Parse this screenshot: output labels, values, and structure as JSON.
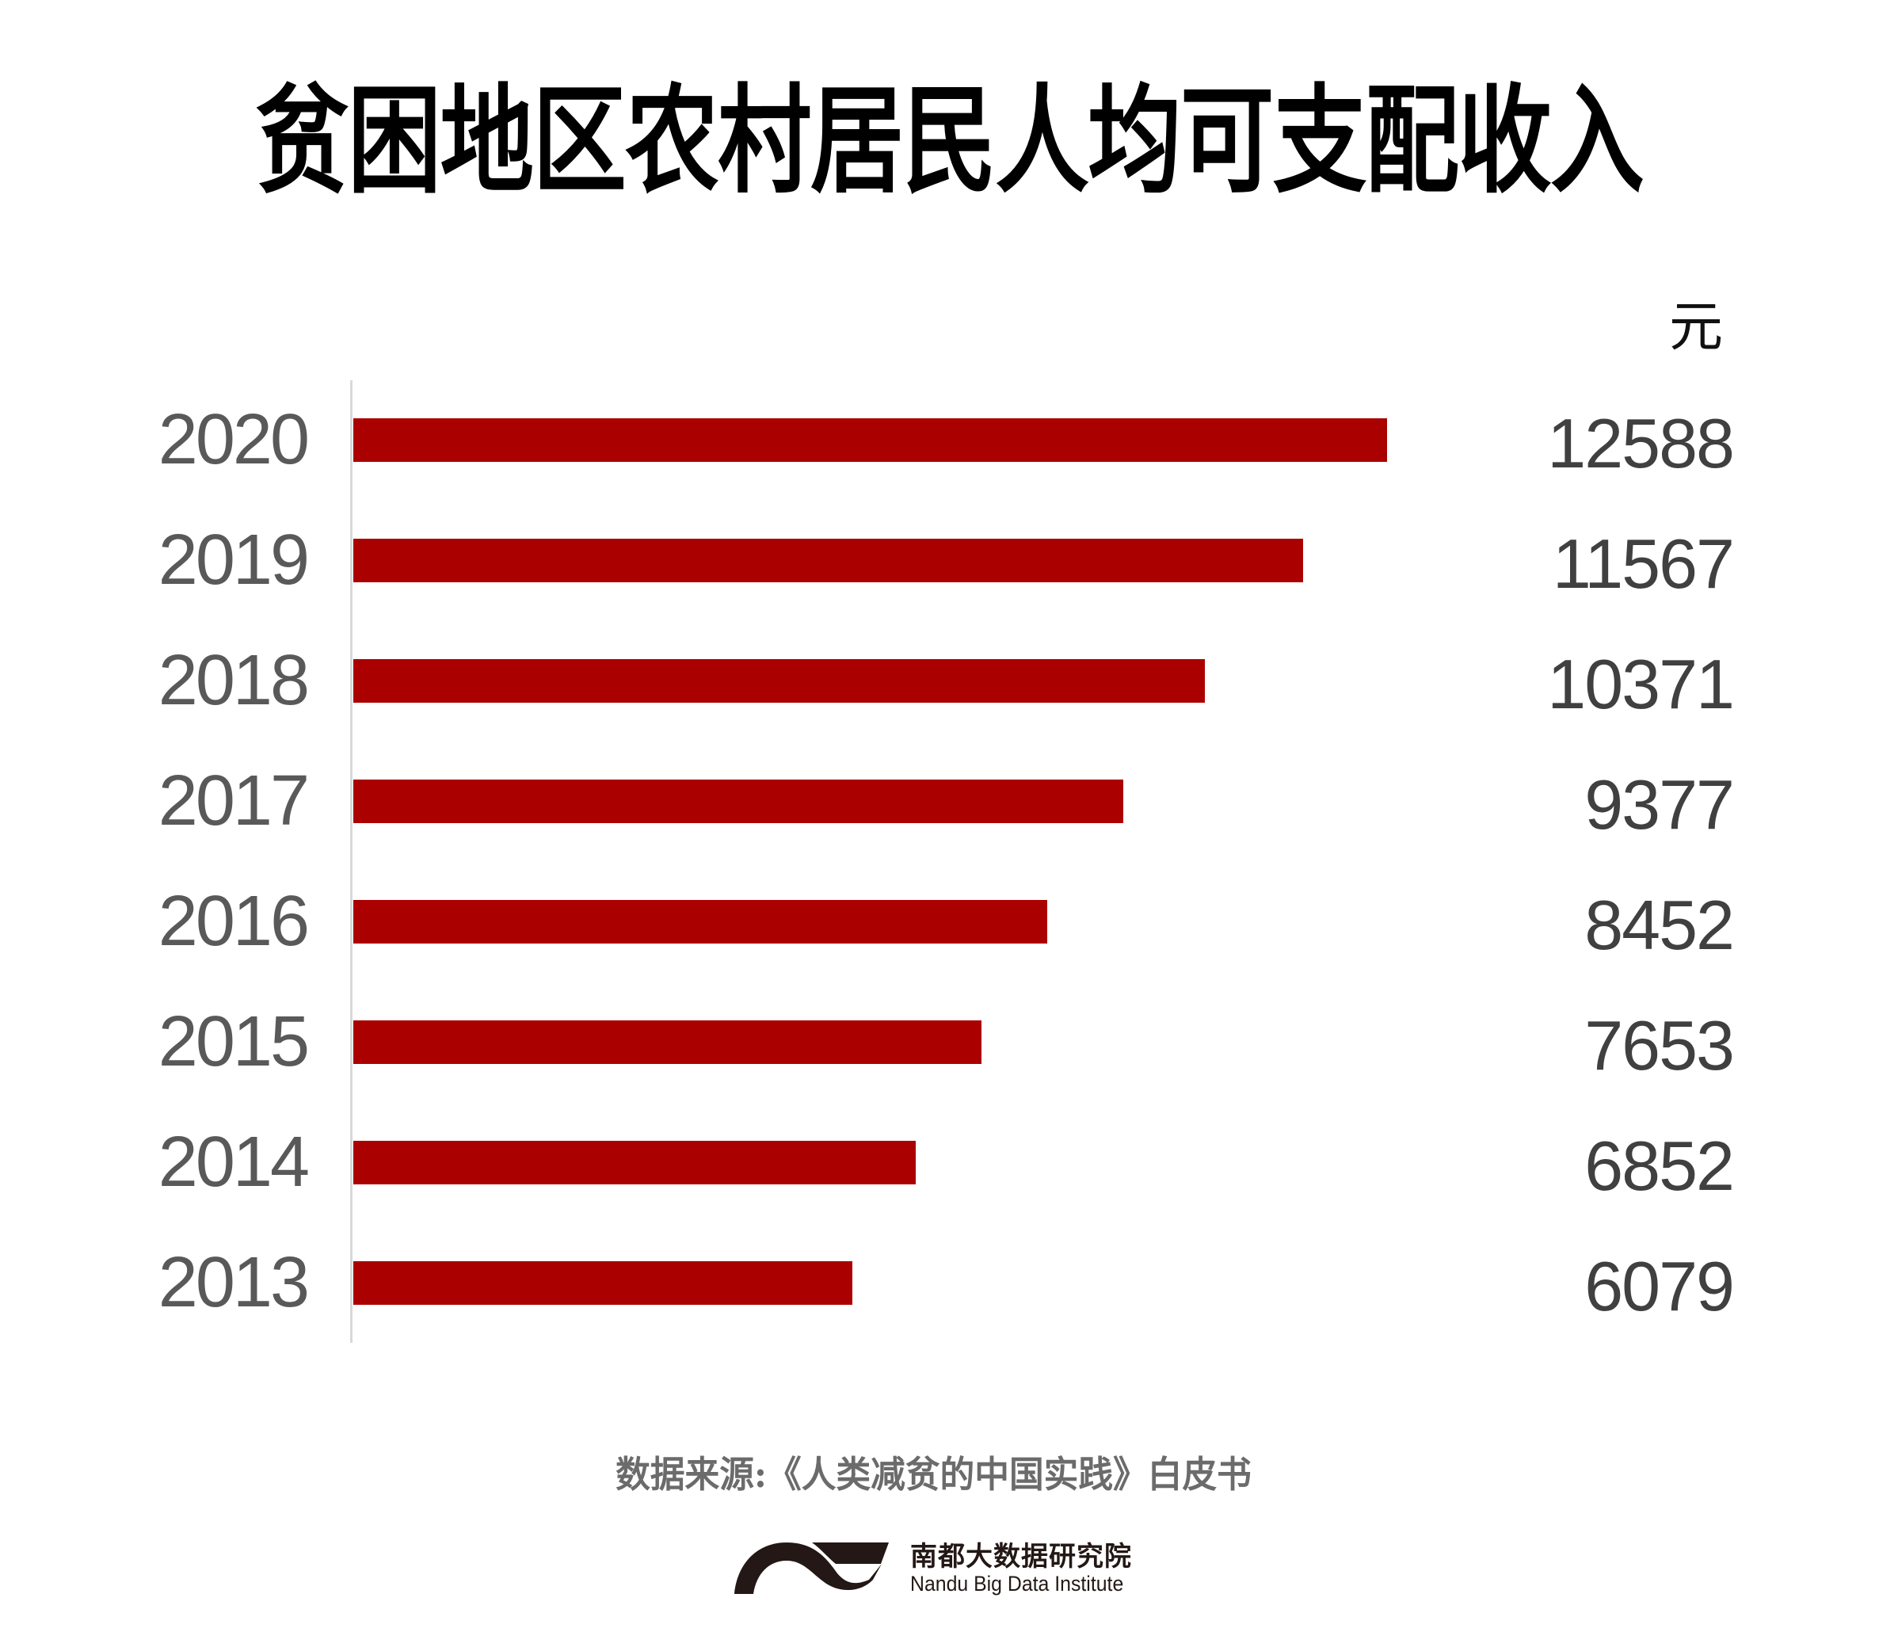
{
  "title": "贫困地区农村居民人均可支配收入",
  "unit": "元",
  "colors": {
    "bar": "#ab0000",
    "axis": "#d9d9d9",
    "year_label": "#595959",
    "value_label": "#404040",
    "source": "#6b6b6b",
    "logo": "#231815"
  },
  "source": "数据来源:《人类减贫的中国实践》白皮书",
  "logo": {
    "name_cn": "南都大数据研究院",
    "name_en": "Nandu Big Data Institute",
    "icon": "nandu-wave-logo-icon"
  },
  "chart_data": {
    "type": "bar",
    "orientation": "horizontal",
    "title": "贫困地区农村居民人均可支配收入",
    "xlabel": "",
    "ylabel": "",
    "unit": "元",
    "categories": [
      "2020",
      "2019",
      "2018",
      "2017",
      "2016",
      "2015",
      "2014",
      "2013"
    ],
    "values": [
      12588,
      11567,
      10371,
      9377,
      8452,
      7653,
      6852,
      6079
    ],
    "value_labels": [
      "12588",
      "11567",
      "10371",
      "9377",
      "8452",
      "7653",
      "6852",
      "6079"
    ],
    "xlim": [
      0,
      12588
    ],
    "grid": false,
    "legend": null,
    "data_labels_position": "right-aligned column",
    "source": "数据来源:《人类减贫的中国实践》白皮书"
  }
}
